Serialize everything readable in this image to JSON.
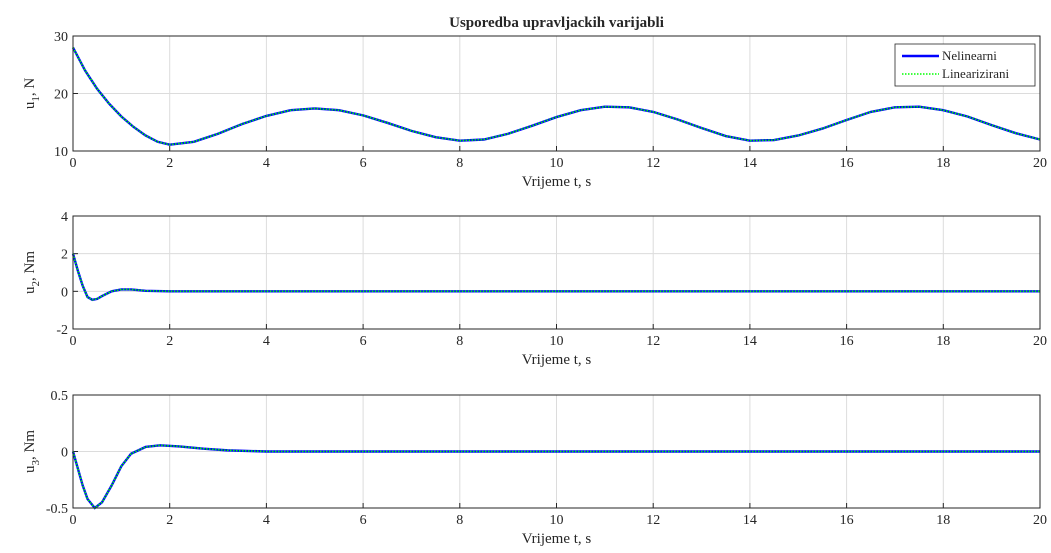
{
  "chart_data": [
    {
      "type": "line",
      "title": "Usporedba upravljackih varijabli",
      "xlabel": "Vrijeme t, s",
      "ylabel": [
        "u",
        "1",
        ", N"
      ],
      "x": [
        0,
        0.25,
        0.5,
        0.75,
        1,
        1.25,
        1.5,
        1.75,
        2,
        2.5,
        3,
        3.5,
        4,
        4.5,
        5,
        5.5,
        6,
        6.5,
        7,
        7.5,
        8,
        8.5,
        9,
        9.5,
        10,
        10.5,
        11,
        11.5,
        12,
        12.5,
        13,
        13.5,
        14,
        14.5,
        15,
        15.5,
        16,
        16.5,
        17,
        17.5,
        18,
        18.5,
        19,
        19.5,
        20
      ],
      "series": [
        {
          "name": "Nelinearni",
          "color": "#0000ff",
          "style": "solid",
          "values": [
            28,
            24,
            20.8,
            18.2,
            16,
            14.2,
            12.7,
            11.6,
            11.1,
            11.6,
            13,
            14.7,
            16.1,
            17.1,
            17.4,
            17.1,
            16.2,
            14.9,
            13.5,
            12.4,
            11.8,
            12,
            13,
            14.4,
            15.9,
            17.1,
            17.7,
            17.6,
            16.8,
            15.5,
            14,
            12.6,
            11.8,
            11.9,
            12.7,
            13.9,
            15.4,
            16.8,
            17.6,
            17.7,
            17.1,
            16,
            14.5,
            13.1,
            12
          ]
        },
        {
          "name": "Linearizirani",
          "color": "#00ff00",
          "style": "dotted",
          "values": [
            28,
            24,
            20.8,
            18.2,
            16,
            14.2,
            12.7,
            11.6,
            11.1,
            11.6,
            13,
            14.7,
            16.1,
            17.1,
            17.4,
            17.1,
            16.2,
            14.9,
            13.5,
            12.4,
            11.8,
            12,
            13,
            14.4,
            15.9,
            17.1,
            17.7,
            17.6,
            16.8,
            15.5,
            14,
            12.6,
            11.8,
            11.9,
            12.7,
            13.9,
            15.4,
            16.8,
            17.6,
            17.7,
            17.1,
            16,
            14.5,
            13.1,
            12
          ]
        }
      ],
      "xlim": [
        0,
        20
      ],
      "xticks": [
        0,
        2,
        4,
        6,
        8,
        10,
        12,
        14,
        16,
        18,
        20
      ],
      "ylim": [
        10,
        30
      ],
      "yticks": [
        10,
        20,
        30
      ],
      "grid": true,
      "legend": "northeast"
    },
    {
      "type": "line",
      "xlabel": "Vrijeme t, s",
      "ylabel": [
        "u",
        "2",
        ", Nm"
      ],
      "x": [
        0,
        0.1,
        0.2,
        0.3,
        0.4,
        0.5,
        0.6,
        0.8,
        1,
        1.2,
        1.5,
        2,
        20
      ],
      "series": [
        {
          "name": "Nelinearni",
          "color": "#0000ff",
          "style": "solid",
          "values": [
            2,
            1.1,
            0.3,
            -0.3,
            -0.45,
            -0.4,
            -0.25,
            0,
            0.1,
            0.1,
            0.03,
            0,
            0
          ]
        },
        {
          "name": "Linearizirani",
          "color": "#00ff00",
          "style": "dotted",
          "values": [
            2,
            1.1,
            0.3,
            -0.3,
            -0.45,
            -0.4,
            -0.25,
            0,
            0.1,
            0.1,
            0.03,
            0,
            0
          ]
        }
      ],
      "xlim": [
        0,
        20
      ],
      "xticks": [
        0,
        2,
        4,
        6,
        8,
        10,
        12,
        14,
        16,
        18,
        20
      ],
      "ylim": [
        -2,
        4
      ],
      "yticks": [
        -2,
        0,
        2,
        4
      ],
      "grid": true
    },
    {
      "type": "line",
      "xlabel": "Vrijeme t, s",
      "ylabel": [
        "u",
        "3",
        ", Nm"
      ],
      "x": [
        0,
        0.1,
        0.2,
        0.3,
        0.45,
        0.6,
        0.8,
        1,
        1.2,
        1.5,
        1.8,
        2.2,
        2.7,
        3.2,
        4,
        5,
        20
      ],
      "series": [
        {
          "name": "Nelinearni",
          "color": "#0000ff",
          "style": "solid",
          "values": [
            0,
            -0.15,
            -0.3,
            -0.42,
            -0.5,
            -0.45,
            -0.3,
            -0.13,
            -0.02,
            0.04,
            0.055,
            0.045,
            0.025,
            0.01,
            0,
            0,
            0
          ]
        },
        {
          "name": "Linearizirani",
          "color": "#00ff00",
          "style": "dotted",
          "values": [
            0,
            -0.15,
            -0.3,
            -0.42,
            -0.5,
            -0.45,
            -0.3,
            -0.13,
            -0.02,
            0.04,
            0.055,
            0.045,
            0.025,
            0.01,
            0,
            0,
            0
          ]
        }
      ],
      "xlim": [
        0,
        20
      ],
      "xticks": [
        0,
        2,
        4,
        6,
        8,
        10,
        12,
        14,
        16,
        18,
        20
      ],
      "ylim": [
        -0.5,
        0.5
      ],
      "yticks": [
        -0.5,
        0,
        0.5
      ],
      "grid": true
    }
  ]
}
